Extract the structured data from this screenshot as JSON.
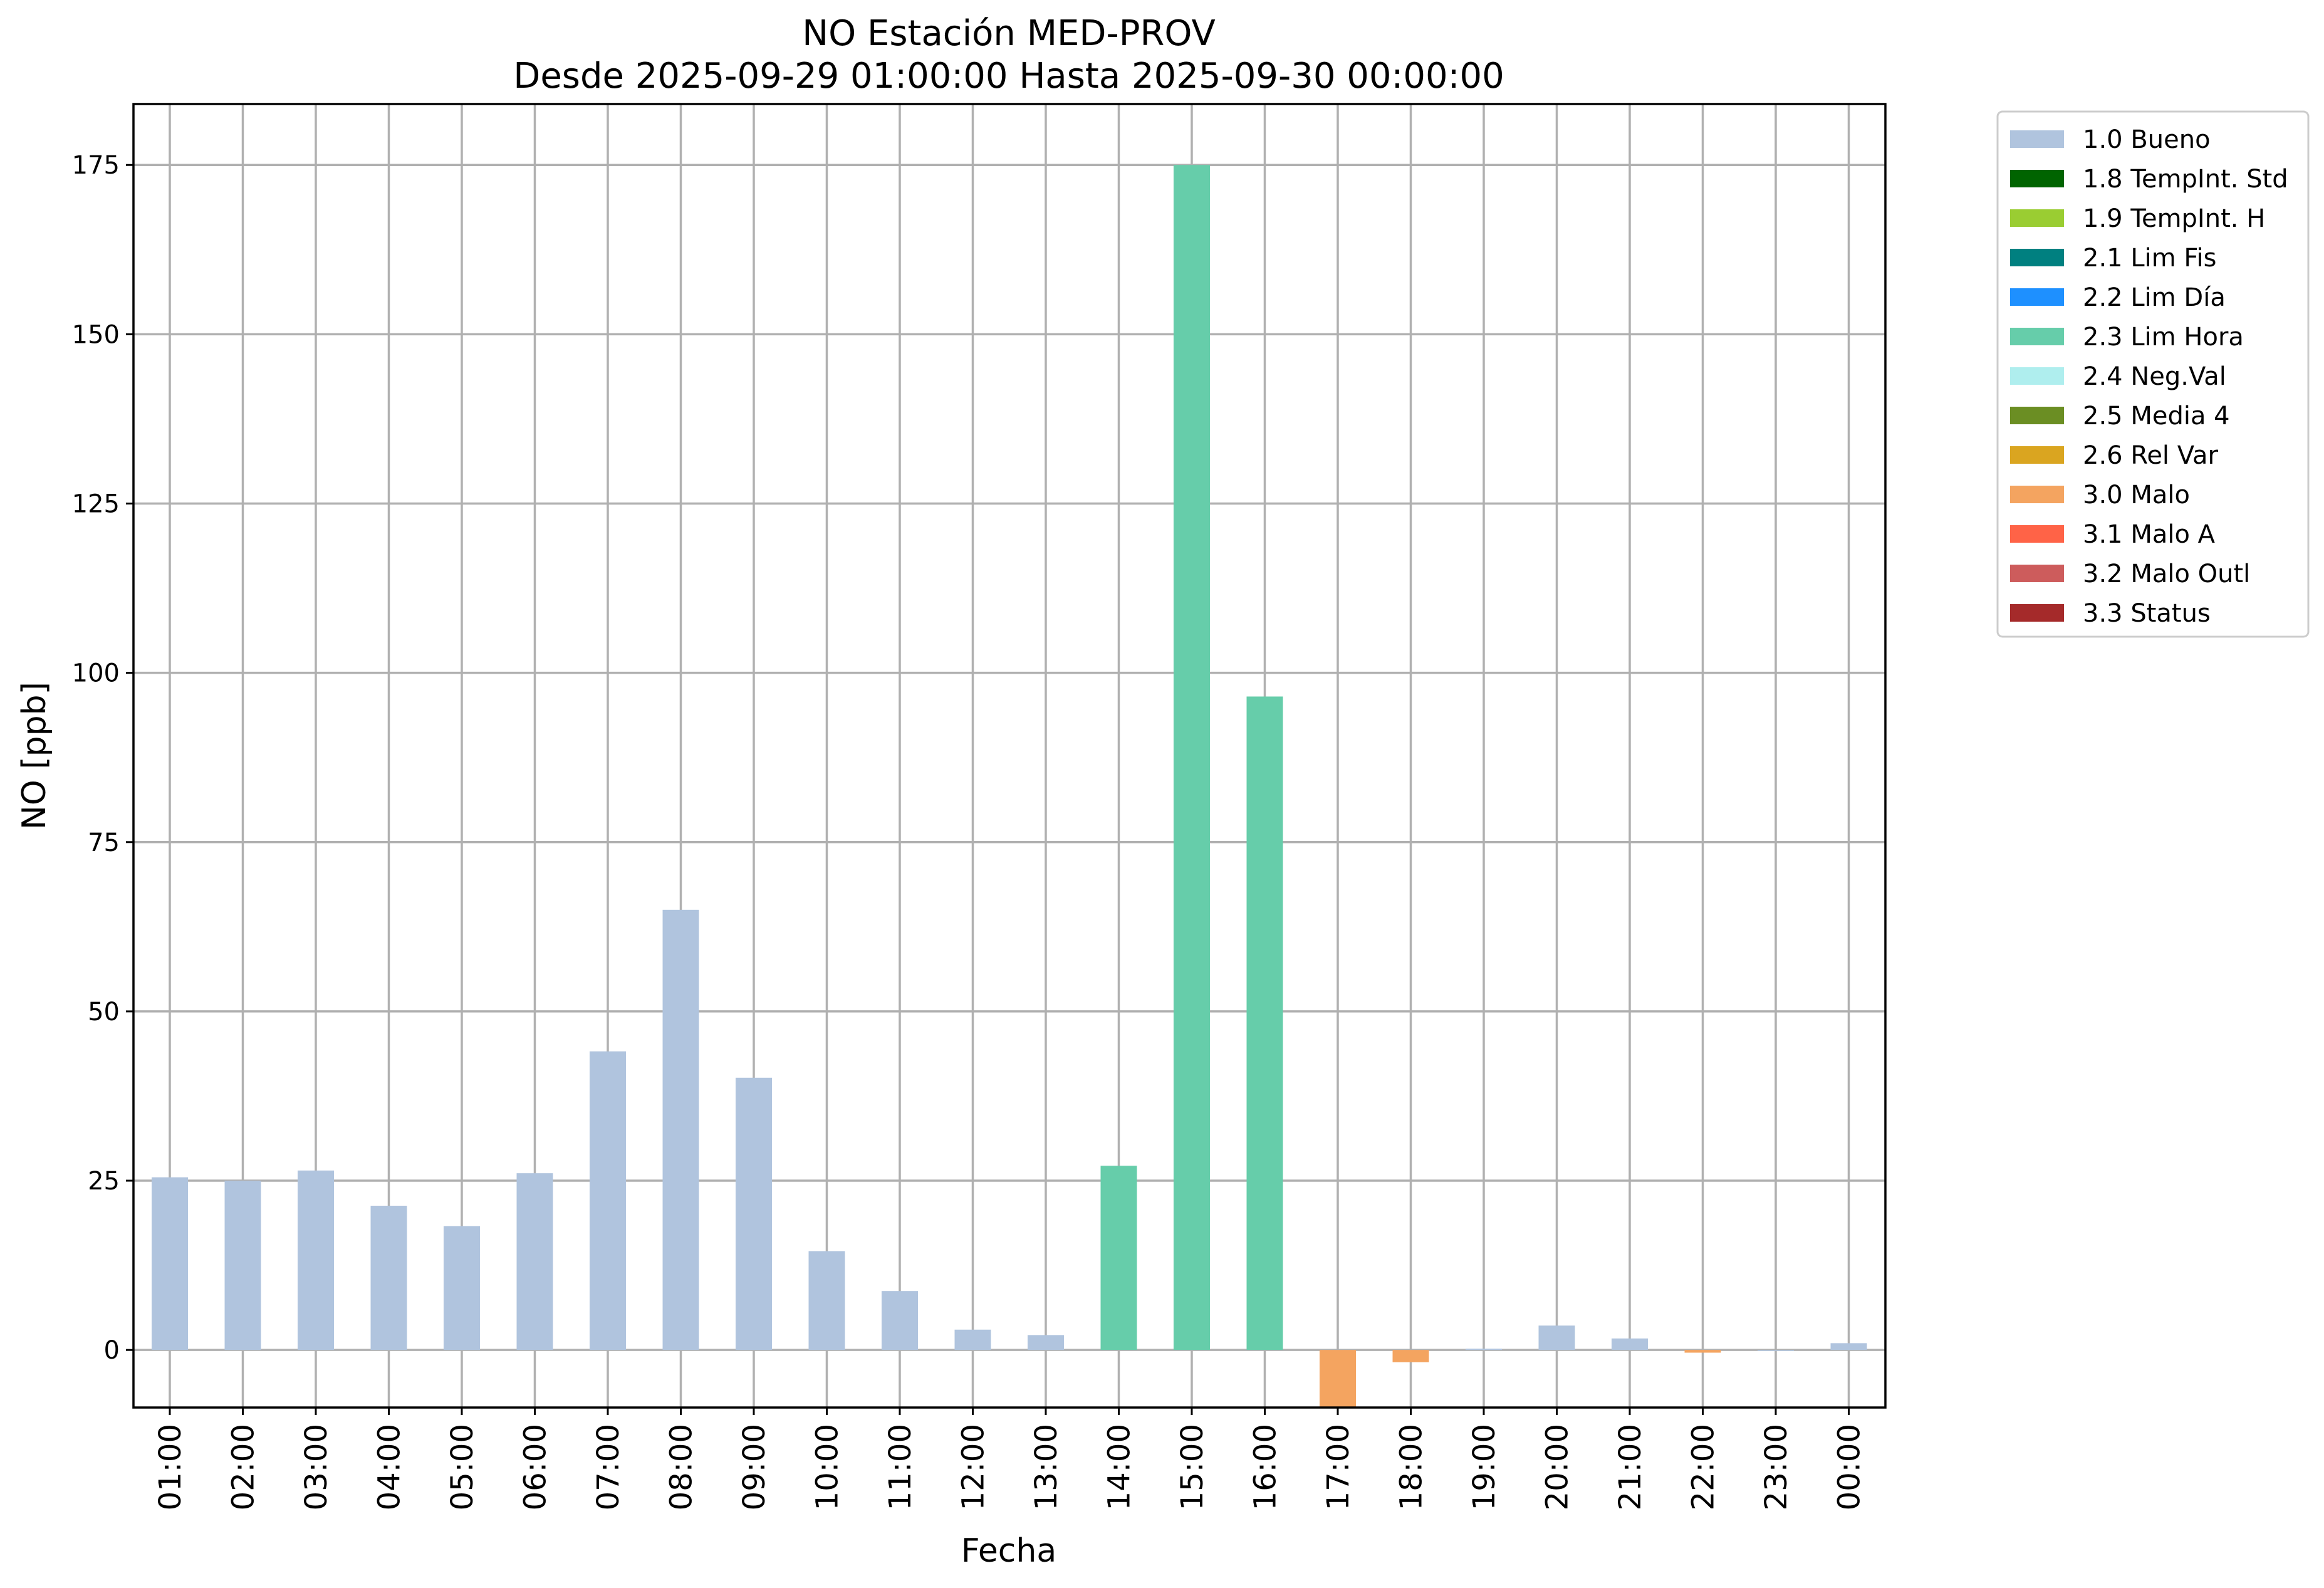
{
  "chart_data": {
    "type": "bar",
    "title": "NO Estación MED-PROV",
    "subtitle": "Desde 2025-09-29 01:00:00 Hasta 2025-09-30 00:00:00",
    "xlabel": "Fecha",
    "ylabel": "NO [ppb]",
    "ylim": [
      -8.5,
      184
    ],
    "yticks": [
      0,
      25,
      50,
      75,
      100,
      125,
      150,
      175
    ],
    "grid": true,
    "legend_position": "outside-top-right",
    "categories": [
      "01:00",
      "02:00",
      "03:00",
      "04:00",
      "05:00",
      "06:00",
      "07:00",
      "08:00",
      "09:00",
      "10:00",
      "11:00",
      "12:00",
      "13:00",
      "14:00",
      "15:00",
      "16:00",
      "17:00",
      "18:00",
      "19:00",
      "20:00",
      "21:00",
      "22:00",
      "23:00",
      "00:00"
    ],
    "values": [
      25.5,
      25.0,
      26.5,
      21.3,
      18.3,
      26.1,
      44.1,
      65.0,
      40.2,
      14.6,
      8.7,
      3.0,
      2.2,
      27.2,
      175.0,
      96.5,
      -8.5,
      -1.8,
      0.2,
      3.6,
      1.7,
      -0.4,
      0.0,
      1.0
    ],
    "flags": [
      "1.0 Bueno",
      "1.0 Bueno",
      "1.0 Bueno",
      "1.0 Bueno",
      "1.0 Bueno",
      "1.0 Bueno",
      "1.0 Bueno",
      "1.0 Bueno",
      "1.0 Bueno",
      "1.0 Bueno",
      "1.0 Bueno",
      "1.0 Bueno",
      "1.0 Bueno",
      "2.3 Lim Hora",
      "2.3 Lim Hora",
      "2.3 Lim Hora",
      "3.0 Malo",
      "3.0 Malo",
      "1.0 Bueno",
      "1.0 Bueno",
      "1.0 Bueno",
      "3.0 Malo",
      "1.0 Bueno",
      "1.0 Bueno"
    ],
    "legend": [
      {
        "name": "1.0 Bueno",
        "color": "#b0c4de"
      },
      {
        "name": "1.8 TempInt. Std",
        "color": "#006400"
      },
      {
        "name": "1.9 TempInt. H",
        "color": "#9acd32"
      },
      {
        "name": "2.1 Lim Fis",
        "color": "#008080"
      },
      {
        "name": "2.2 Lim Día",
        "color": "#1e90ff"
      },
      {
        "name": "2.3 Lim Hora",
        "color": "#66cdaa"
      },
      {
        "name": "2.4 Neg.Val",
        "color": "#afeeee"
      },
      {
        "name": "2.5 Media 4",
        "color": "#6b8e23"
      },
      {
        "name": "2.6 Rel Var",
        "color": "#daa520"
      },
      {
        "name": "3.0 Malo",
        "color": "#f4a460"
      },
      {
        "name": "3.1 Malo A",
        "color": "#ff6347"
      },
      {
        "name": "3.2 Malo Outl",
        "color": "#cd5c5c"
      },
      {
        "name": "3.3 Status",
        "color": "#a52a2a"
      }
    ]
  }
}
